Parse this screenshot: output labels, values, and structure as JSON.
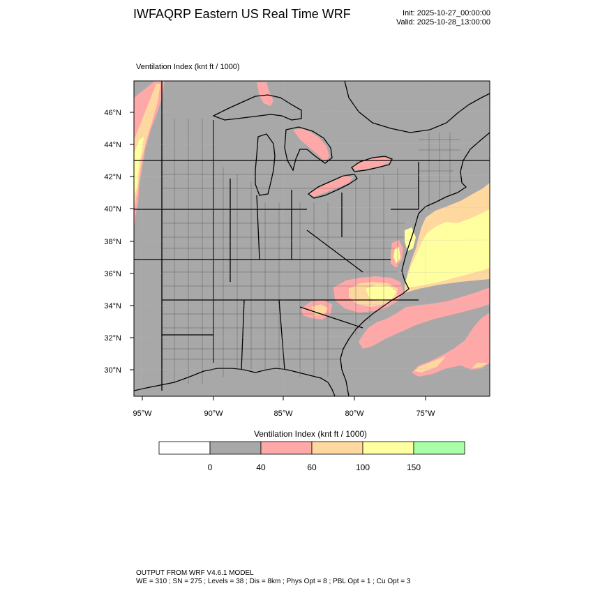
{
  "header": {
    "title": "IWFAQRP Eastern US Real Time WRF",
    "init": "Init: 2025-10-27_00:00:00",
    "valid": "Valid: 2025-10-28_13:00:00"
  },
  "map": {
    "field_label": "Ventilation Index   (knt ft / 1000)",
    "lat_labels": [
      "46°N",
      "44°N",
      "42°N",
      "40°N",
      "38°N",
      "36°N",
      "34°N",
      "32°N",
      "30°N"
    ],
    "lon_labels": [
      "95°W",
      "90°W",
      "85°W",
      "80°W",
      "75°W"
    ],
    "colors": {
      "land_and_sea": "#a8a8a8",
      "lake": "#a8a8a8",
      "band_40_60": "#ffa8a8",
      "band_60_100": "#ffd8a0",
      "band_100_150": "#ffffa0",
      "boundaries": "#000000"
    }
  },
  "legend": {
    "title": "Ventilation Index  (knt ft / 1000)",
    "colors": [
      "#ffffff",
      "#a8a8a8",
      "#ffa8a8",
      "#ffd8a0",
      "#ffffa0",
      "#a8ffa8"
    ],
    "labels": [
      "0",
      "40",
      "60",
      "100",
      "150"
    ]
  },
  "footer": {
    "line1": "OUTPUT FROM WRF V4.6.1 MODEL",
    "line2": "WE = 310 ; SN = 275 ; Levels = 38 ; Dis = 8km ; Phys Opt = 8 ; PBL Opt = 1 ; Cu Opt = 3"
  }
}
